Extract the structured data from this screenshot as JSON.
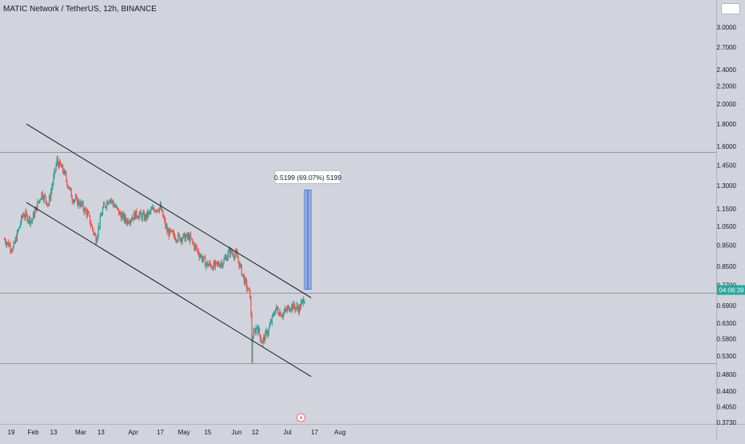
{
  "header": {
    "title": "MATIC Network / TetherUS, 12h, BINANCE"
  },
  "price_tag": {
    "label": "04:06:39"
  },
  "measure": {
    "label": "0.5199 (69.07%) 5199"
  },
  "chart_data": {
    "type": "candlestick",
    "symbol": "MATIC Network / TetherUS",
    "interval": "12h",
    "exchange": "BINANCE",
    "y_axis": {
      "scale": "log",
      "ticks": [
        "3.0000",
        "2.7000",
        "2.4000",
        "2.2000",
        "2.0000",
        "1.8000",
        "1.6000",
        "1.4500",
        "1.3000",
        "1.1500",
        "1.0500",
        "0.9500",
        "0.8500",
        "0.7700",
        "0.6900",
        "0.6300",
        "0.5800",
        "0.5300",
        "0.4800",
        "0.4400",
        "0.4050",
        "0.3730"
      ],
      "range": [
        0.36,
        3.4
      ]
    },
    "x_axis": {
      "ticks": [
        {
          "label": "19",
          "date": "2023-01-19"
        },
        {
          "label": "Feb",
          "date": "2023-02-01"
        },
        {
          "label": "13",
          "date": "2023-02-13"
        },
        {
          "label": "Mar",
          "date": "2023-03-01"
        },
        {
          "label": "13",
          "date": "2023-03-13"
        },
        {
          "label": "Apr",
          "date": "2023-04-01"
        },
        {
          "label": "17",
          "date": "2023-04-17"
        },
        {
          "label": "May",
          "date": "2023-05-01"
        },
        {
          "label": "15",
          "date": "2023-05-15"
        },
        {
          "label": "Jun",
          "date": "2023-06-01"
        },
        {
          "label": "12",
          "date": "2023-06-12"
        },
        {
          "label": "Jul",
          "date": "2023-07-01"
        },
        {
          "label": "17",
          "date": "2023-07-17"
        },
        {
          "label": "Aug",
          "date": "2023-08-01"
        }
      ]
    },
    "price_path": [
      [
        "2023-01-15",
        0.98
      ],
      [
        "2023-01-20",
        0.93
      ],
      [
        "2023-01-26",
        1.12
      ],
      [
        "2023-01-31",
        1.08
      ],
      [
        "2023-02-06",
        1.25
      ],
      [
        "2023-02-10",
        1.18
      ],
      [
        "2023-02-15",
        1.48
      ],
      [
        "2023-02-19",
        1.4
      ],
      [
        "2023-02-24",
        1.22
      ],
      [
        "2023-03-01",
        1.18
      ],
      [
        "2023-03-05",
        1.12
      ],
      [
        "2023-03-10",
        0.98
      ],
      [
        "2023-03-14",
        1.15
      ],
      [
        "2023-03-18",
        1.22
      ],
      [
        "2023-03-24",
        1.12
      ],
      [
        "2023-03-28",
        1.08
      ],
      [
        "2023-04-03",
        1.12
      ],
      [
        "2023-04-08",
        1.1
      ],
      [
        "2023-04-13",
        1.15
      ],
      [
        "2023-04-17",
        1.16
      ],
      [
        "2023-04-21",
        1.02
      ],
      [
        "2023-04-27",
        0.99
      ],
      [
        "2023-05-04",
        0.99
      ],
      [
        "2023-05-09",
        0.92
      ],
      [
        "2023-05-14",
        0.86
      ],
      [
        "2023-05-19",
        0.85
      ],
      [
        "2023-05-24",
        0.87
      ],
      [
        "2023-05-28",
        0.92
      ],
      [
        "2023-06-01",
        0.9
      ],
      [
        "2023-06-06",
        0.78
      ],
      [
        "2023-06-09",
        0.73
      ],
      [
        "2023-06-10",
        0.58
      ],
      [
        "2023-06-13",
        0.62
      ],
      [
        "2023-06-16",
        0.57
      ],
      [
        "2023-06-20",
        0.61
      ],
      [
        "2023-06-24",
        0.68
      ],
      [
        "2023-06-28",
        0.66
      ],
      [
        "2023-07-03",
        0.69
      ],
      [
        "2023-07-08",
        0.68
      ],
      [
        "2023-07-11",
        0.72
      ]
    ],
    "horizontal_lines": [
      1.55,
      0.74,
      0.51
    ],
    "trendlines": [
      {
        "name": "channel-upper",
        "from": [
          "2023-01-28",
          1.8
        ],
        "to": [
          "2023-07-15",
          0.72
        ]
      },
      {
        "name": "channel-lower",
        "from": [
          "2023-01-28",
          1.19
        ],
        "to": [
          "2023-07-15",
          0.475
        ]
      }
    ],
    "projection": {
      "from_date": "2023-07-11",
      "to_date": "2023-07-15",
      "low": 0.752,
      "high": 1.272
    },
    "last_price": 0.75
  },
  "colors": {
    "background": "#d1d4dc",
    "up": "#26a69a",
    "down": "#ef5350",
    "line": "#131722",
    "projection_fill": "#7e9fd8",
    "projection_edge": "#2962ff",
    "price_tag": "#26a69a",
    "axis_text": "#131722",
    "hline": "#9598a1"
  }
}
